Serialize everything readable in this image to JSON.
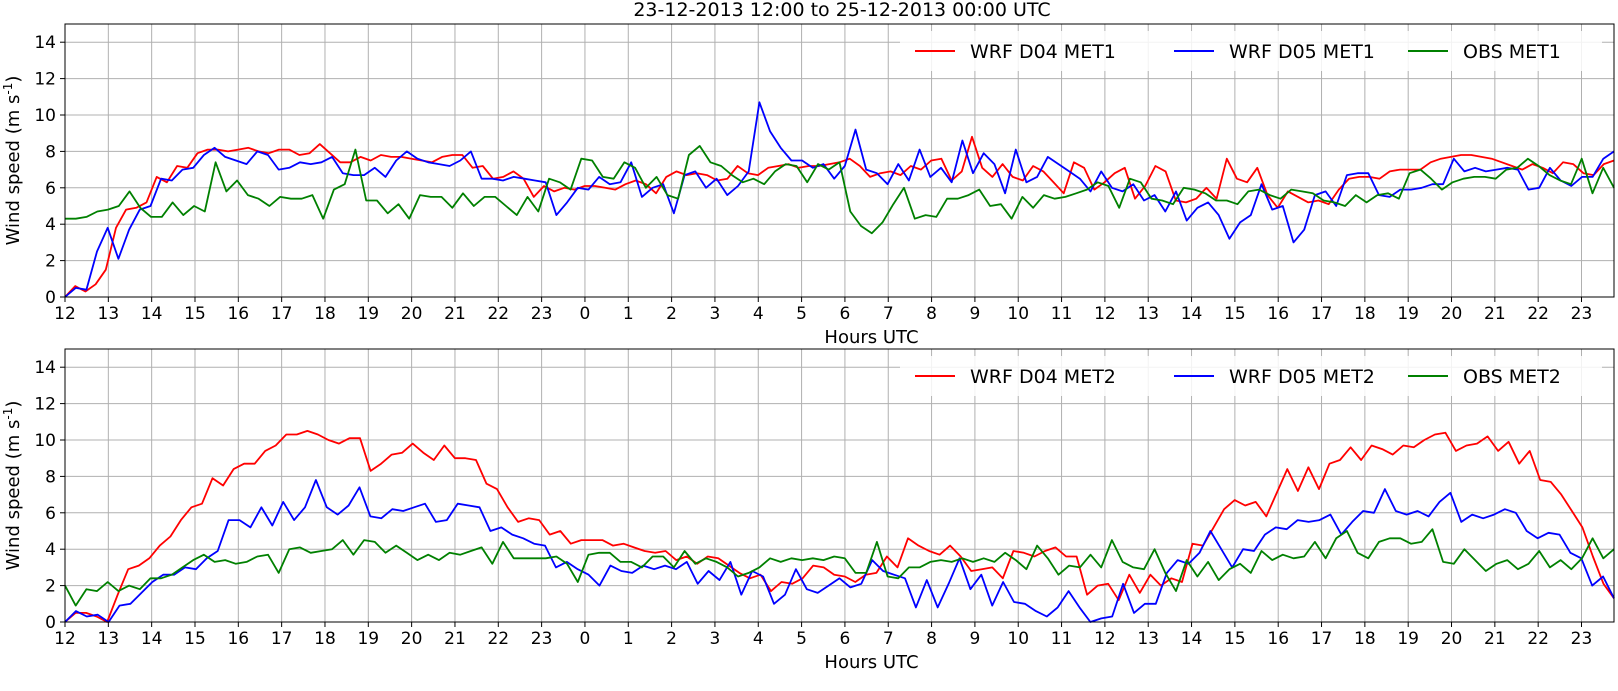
{
  "chart_data": [
    {
      "type": "line",
      "title": "23-12-2013 12:00  to  25-12-2013 00:00 UTC",
      "xlabel": "Hours UTC",
      "ylabel": "Wind speed (m s",
      "ylabel_sup": "-1",
      "ylabel_close": ")",
      "ylim": [
        0,
        15
      ],
      "yticks": [
        0,
        2,
        4,
        6,
        8,
        10,
        12,
        14
      ],
      "xlim": [
        0,
        35.75
      ],
      "xtick_labels": [
        "12",
        "13",
        "14",
        "15",
        "16",
        "17",
        "18",
        "19",
        "20",
        "21",
        "22",
        "23",
        "0",
        "1",
        "2",
        "3",
        "4",
        "5",
        "6",
        "7",
        "8",
        "9",
        "10",
        "11",
        "12",
        "13",
        "14",
        "15",
        "16",
        "17",
        "18",
        "19",
        "20",
        "21",
        "22",
        "23"
      ],
      "grid": true,
      "legend_position": "top-right",
      "series": [
        {
          "name": "WRF D04 MET1",
          "color": "#ff0000",
          "values": [
            0.0,
            0.6,
            0.3,
            0.7,
            1.5,
            3.8,
            4.8,
            4.9,
            5.2,
            6.6,
            6.3,
            7.2,
            7.1,
            7.9,
            8.1,
            8.1,
            8.0,
            8.1,
            8.2,
            8.0,
            7.9,
            8.1,
            8.1,
            7.8,
            7.9,
            8.4,
            7.9,
            7.4,
            7.4,
            7.7,
            7.5,
            7.8,
            7.7,
            7.7,
            7.6,
            7.5,
            7.4,
            7.7,
            7.8,
            7.8,
            7.1,
            7.2,
            6.5,
            6.6,
            6.9,
            6.5,
            5.5,
            6.1,
            5.8,
            6.0,
            5.9,
            6.1,
            6.1,
            6.0,
            5.9,
            6.2,
            6.4,
            6.2,
            5.7,
            6.6,
            6.9,
            6.7,
            6.8,
            6.7,
            6.4,
            6.5,
            7.2,
            6.8,
            6.7,
            7.1,
            7.2,
            7.3,
            7.1,
            7.2,
            7.2,
            7.3,
            7.4,
            7.6,
            7.2,
            6.6,
            6.8,
            6.9,
            6.7,
            7.2,
            7.0,
            7.5,
            7.6,
            6.4,
            6.9,
            8.8,
            7.1,
            6.6,
            7.3,
            6.6,
            6.4,
            7.2,
            6.9,
            6.3,
            5.7,
            7.4,
            7.1,
            5.9,
            6.3,
            6.8,
            7.1,
            5.4,
            6.1,
            7.2,
            6.9,
            5.3,
            5.2,
            5.4,
            6.0,
            5.4,
            7.6,
            6.5,
            6.3,
            7.1,
            5.6,
            4.9,
            5.8,
            5.5,
            5.2,
            5.3,
            5.1,
            5.9,
            6.5,
            6.6,
            6.6,
            6.5,
            6.9,
            7.0,
            7.0,
            7.0,
            7.4,
            7.6,
            7.7,
            7.8,
            7.8,
            7.7,
            7.6,
            7.4,
            7.2,
            7.0,
            7.3,
            7.1,
            6.8,
            7.4,
            7.3,
            6.8,
            6.7,
            7.3,
            7.5
          ]
        },
        {
          "name": "WRF D05 MET1",
          "color": "#0000ff",
          "values": [
            0.0,
            0.5,
            0.4,
            2.5,
            3.8,
            2.1,
            3.7,
            4.8,
            5.0,
            6.5,
            6.4,
            7.0,
            7.1,
            7.8,
            8.2,
            7.7,
            7.5,
            7.3,
            8.0,
            7.8,
            7.0,
            7.1,
            7.4,
            7.3,
            7.4,
            7.7,
            6.8,
            6.7,
            6.7,
            7.1,
            6.6,
            7.5,
            8.0,
            7.6,
            7.4,
            7.3,
            7.2,
            7.5,
            8.0,
            6.5,
            6.5,
            6.4,
            6.6,
            6.5,
            6.4,
            6.3,
            4.5,
            5.2,
            6.0,
            5.9,
            6.6,
            6.2,
            6.3,
            7.4,
            5.5,
            6.0,
            6.2,
            4.6,
            6.7,
            6.9,
            6.0,
            6.5,
            5.6,
            6.1,
            6.9,
            10.7,
            9.1,
            8.2,
            7.5,
            7.5,
            7.1,
            7.3,
            6.5,
            7.2,
            9.2,
            7.0,
            6.8,
            6.2,
            7.3,
            6.4,
            8.1,
            6.6,
            7.1,
            6.3,
            8.6,
            6.8,
            7.9,
            7.3,
            5.7,
            8.1,
            6.3,
            6.6,
            7.7,
            7.3,
            6.9,
            6.5,
            5.8,
            6.9,
            6.0,
            5.8,
            6.2,
            5.3,
            5.6,
            4.7,
            5.8,
            4.2,
            4.9,
            5.2,
            4.5,
            3.2,
            4.1,
            4.5,
            6.2,
            4.8,
            5.0,
            3.0,
            3.7,
            5.6,
            5.8,
            5.0,
            6.7,
            6.8,
            6.8,
            5.6,
            5.5,
            5.9,
            5.9,
            6.0,
            6.2,
            6.2,
            7.6,
            6.9,
            7.1,
            6.9,
            7.0,
            7.1,
            7.0,
            5.9,
            6.0,
            7.1,
            6.4,
            6.1,
            6.6,
            6.6,
            7.6,
            8.0
          ]
        },
        {
          "name": "OBS MET1",
          "color": "#008000",
          "values": [
            4.3,
            4.3,
            4.4,
            4.7,
            4.8,
            5.0,
            5.8,
            4.9,
            4.4,
            4.4,
            5.2,
            4.5,
            5.0,
            4.7,
            7.4,
            5.8,
            6.4,
            5.6,
            5.4,
            5.0,
            5.5,
            5.4,
            5.4,
            5.6,
            4.3,
            5.9,
            6.2,
            8.1,
            5.3,
            5.3,
            4.6,
            5.1,
            4.3,
            5.6,
            5.5,
            5.5,
            4.9,
            5.7,
            5.0,
            5.5,
            5.5,
            5.0,
            4.5,
            5.5,
            4.7,
            6.5,
            6.3,
            5.9,
            7.6,
            7.5,
            6.6,
            6.5,
            7.4,
            7.1,
            6.0,
            6.6,
            5.6,
            5.4,
            7.8,
            8.3,
            7.4,
            7.2,
            6.7,
            6.3,
            6.5,
            6.2,
            6.9,
            7.3,
            7.2,
            6.3,
            7.3,
            7.0,
            7.4,
            4.7,
            3.9,
            3.5,
            4.1,
            5.1,
            6.0,
            4.3,
            4.5,
            4.4,
            5.4,
            5.4,
            5.6,
            5.9,
            5.0,
            5.1,
            4.3,
            5.5,
            4.9,
            5.6,
            5.4,
            5.5,
            5.7,
            5.9,
            6.3,
            6.1,
            4.9,
            6.5,
            6.3,
            5.4,
            5.3,
            5.1,
            6.0,
            5.9,
            5.7,
            5.3,
            5.3,
            5.1,
            5.8,
            5.9,
            5.6,
            5.4,
            5.9,
            5.8,
            5.7,
            5.3,
            5.2,
            5.0,
            5.6,
            5.2,
            5.6,
            5.7,
            5.4,
            6.8,
            7.0,
            6.5,
            5.9,
            6.3,
            6.5,
            6.6,
            6.6,
            6.5,
            7.0,
            7.1,
            7.6,
            7.2,
            6.7,
            6.4,
            6.2,
            7.6,
            5.7,
            7.1,
            6.0
          ]
        }
      ]
    },
    {
      "type": "line",
      "title": "",
      "xlabel": "Hours UTC",
      "ylabel": "Wind speed (m s",
      "ylabel_sup": "-1",
      "ylabel_close": ")",
      "ylim": [
        0,
        15
      ],
      "yticks": [
        0,
        2,
        4,
        6,
        8,
        10,
        12,
        14
      ],
      "xlim": [
        0,
        35.75
      ],
      "xtick_labels": [
        "12",
        "13",
        "14",
        "15",
        "16",
        "17",
        "18",
        "19",
        "20",
        "21",
        "22",
        "23",
        "0",
        "1",
        "2",
        "3",
        "4",
        "5",
        "6",
        "7",
        "8",
        "9",
        "10",
        "11",
        "12",
        "13",
        "14",
        "15",
        "16",
        "17",
        "18",
        "19",
        "20",
        "21",
        "22",
        "23"
      ],
      "grid": true,
      "legend_position": "top-right",
      "series": [
        {
          "name": "WRF D04 MET2",
          "color": "#ff0000",
          "values": [
            0.0,
            0.5,
            0.5,
            0.3,
            0.0,
            1.5,
            2.9,
            3.1,
            3.5,
            4.2,
            4.7,
            5.6,
            6.3,
            6.5,
            7.9,
            7.5,
            8.4,
            8.7,
            8.7,
            9.4,
            9.7,
            10.3,
            10.3,
            10.5,
            10.3,
            10.0,
            9.8,
            10.1,
            10.1,
            8.3,
            8.7,
            9.2,
            9.3,
            9.8,
            9.3,
            8.9,
            9.7,
            9.0,
            9.0,
            8.9,
            7.6,
            7.3,
            6.3,
            5.5,
            5.7,
            5.6,
            4.8,
            5.0,
            4.3,
            4.5,
            4.5,
            4.5,
            4.2,
            4.3,
            4.1,
            3.9,
            3.8,
            3.9,
            3.4,
            3.6,
            3.2,
            3.6,
            3.5,
            3.1,
            2.7,
            2.4,
            2.6,
            1.7,
            2.2,
            2.1,
            2.4,
            3.1,
            3.0,
            2.6,
            2.5,
            2.2,
            2.6,
            2.7,
            3.6,
            3.0,
            4.6,
            4.2,
            3.9,
            3.7,
            4.2,
            3.6,
            2.8,
            2.9,
            3.0,
            2.4,
            3.9,
            3.8,
            3.6,
            3.9,
            4.1,
            3.6,
            3.6,
            1.5,
            2.0,
            2.1,
            1.2,
            2.6,
            1.6,
            2.6,
            2.0,
            2.4,
            2.2,
            4.3,
            4.2,
            5.2,
            6.2,
            6.7,
            6.4,
            6.6,
            5.8,
            7.1,
            8.4,
            7.2,
            8.5,
            7.3,
            8.7,
            8.9,
            9.6,
            8.9,
            9.7,
            9.5,
            9.2,
            9.7,
            9.6,
            10.0,
            10.3,
            10.4,
            9.4,
            9.7,
            9.8,
            10.2,
            9.4,
            9.9,
            8.7,
            9.4,
            7.8,
            7.7,
            7.0,
            6.1,
            5.2,
            3.6,
            2.1,
            1.3
          ]
        },
        {
          "name": "WRF D05 MET2",
          "color": "#0000ff",
          "values": [
            0.0,
            0.6,
            0.3,
            0.4,
            0.0,
            0.9,
            1.0,
            1.6,
            2.2,
            2.6,
            2.6,
            3.0,
            2.9,
            3.5,
            3.9,
            5.6,
            5.6,
            5.2,
            6.3,
            5.3,
            6.6,
            5.6,
            6.3,
            7.8,
            6.3,
            5.9,
            6.4,
            7.4,
            5.8,
            5.7,
            6.2,
            6.1,
            6.3,
            6.5,
            5.5,
            5.6,
            6.5,
            6.4,
            6.3,
            5.0,
            5.2,
            4.8,
            4.6,
            4.3,
            4.2,
            3.0,
            3.3,
            2.9,
            2.6,
            2.0,
            3.1,
            2.8,
            2.7,
            3.1,
            2.9,
            3.1,
            2.9,
            3.3,
            2.1,
            2.8,
            2.3,
            3.3,
            1.5,
            2.8,
            2.5,
            1.0,
            1.5,
            2.9,
            1.8,
            1.6,
            2.0,
            2.4,
            1.9,
            2.1,
            3.4,
            2.8,
            2.6,
            2.4,
            0.8,
            2.3,
            0.8,
            2.1,
            3.5,
            1.8,
            2.6,
            0.9,
            2.2,
            1.1,
            1.0,
            0.6,
            0.3,
            0.8,
            1.7,
            0.8,
            0.0,
            0.2,
            0.3,
            2.1,
            0.5,
            1.0,
            1.0,
            2.7,
            3.4,
            3.2,
            3.8,
            5.0,
            4.0,
            3.0,
            4.0,
            3.9,
            4.8,
            5.2,
            5.1,
            5.6,
            5.5,
            5.6,
            5.9,
            4.8,
            5.5,
            6.1,
            6.0,
            7.3,
            6.1,
            5.9,
            6.1,
            5.8,
            6.6,
            7.1,
            5.5,
            5.9,
            5.7,
            5.9,
            6.2,
            6.0,
            5.0,
            4.6,
            4.9,
            4.8,
            3.8,
            3.5,
            2.0,
            2.5,
            1.3
          ]
        },
        {
          "name": "OBS MET2",
          "color": "#008000",
          "values": [
            2.0,
            0.9,
            1.8,
            1.7,
            2.2,
            1.7,
            2.0,
            1.8,
            2.4,
            2.4,
            2.6,
            3.0,
            3.4,
            3.7,
            3.3,
            3.4,
            3.2,
            3.3,
            3.6,
            3.7,
            2.7,
            4.0,
            4.1,
            3.8,
            3.9,
            4.0,
            4.5,
            3.7,
            4.5,
            4.4,
            3.8,
            4.2,
            3.8,
            3.4,
            3.7,
            3.4,
            3.8,
            3.7,
            3.9,
            4.1,
            3.2,
            4.4,
            3.5,
            3.5,
            3.5,
            3.5,
            3.6,
            3.2,
            2.2,
            3.7,
            3.8,
            3.8,
            3.3,
            3.3,
            3.0,
            3.6,
            3.6,
            3.0,
            3.9,
            3.2,
            3.5,
            3.3,
            3.0,
            2.5,
            2.7,
            3.0,
            3.5,
            3.3,
            3.5,
            3.4,
            3.5,
            3.4,
            3.6,
            3.5,
            2.7,
            2.7,
            4.4,
            2.5,
            2.4,
            3.0,
            3.0,
            3.3,
            3.4,
            3.3,
            3.5,
            3.3,
            3.5,
            3.3,
            3.8,
            3.4,
            2.9,
            4.2,
            3.5,
            2.6,
            3.1,
            3.0,
            3.7,
            3.0,
            4.5,
            3.3,
            3.0,
            2.9,
            4.0,
            2.7,
            1.7,
            3.4,
            2.5,
            3.3,
            2.3,
            2.9,
            3.2,
            2.7,
            3.9,
            3.4,
            3.7,
            3.5,
            3.6,
            4.4,
            3.5,
            4.6,
            5.0,
            3.8,
            3.5,
            4.4,
            4.6,
            4.6,
            4.3,
            4.4,
            5.1,
            3.3,
            3.2,
            4.0,
            3.4,
            2.8,
            3.2,
            3.4,
            2.9,
            3.2,
            3.9,
            3.0,
            3.4,
            2.9,
            3.5,
            4.6,
            3.5,
            4.0
          ]
        }
      ]
    }
  ]
}
